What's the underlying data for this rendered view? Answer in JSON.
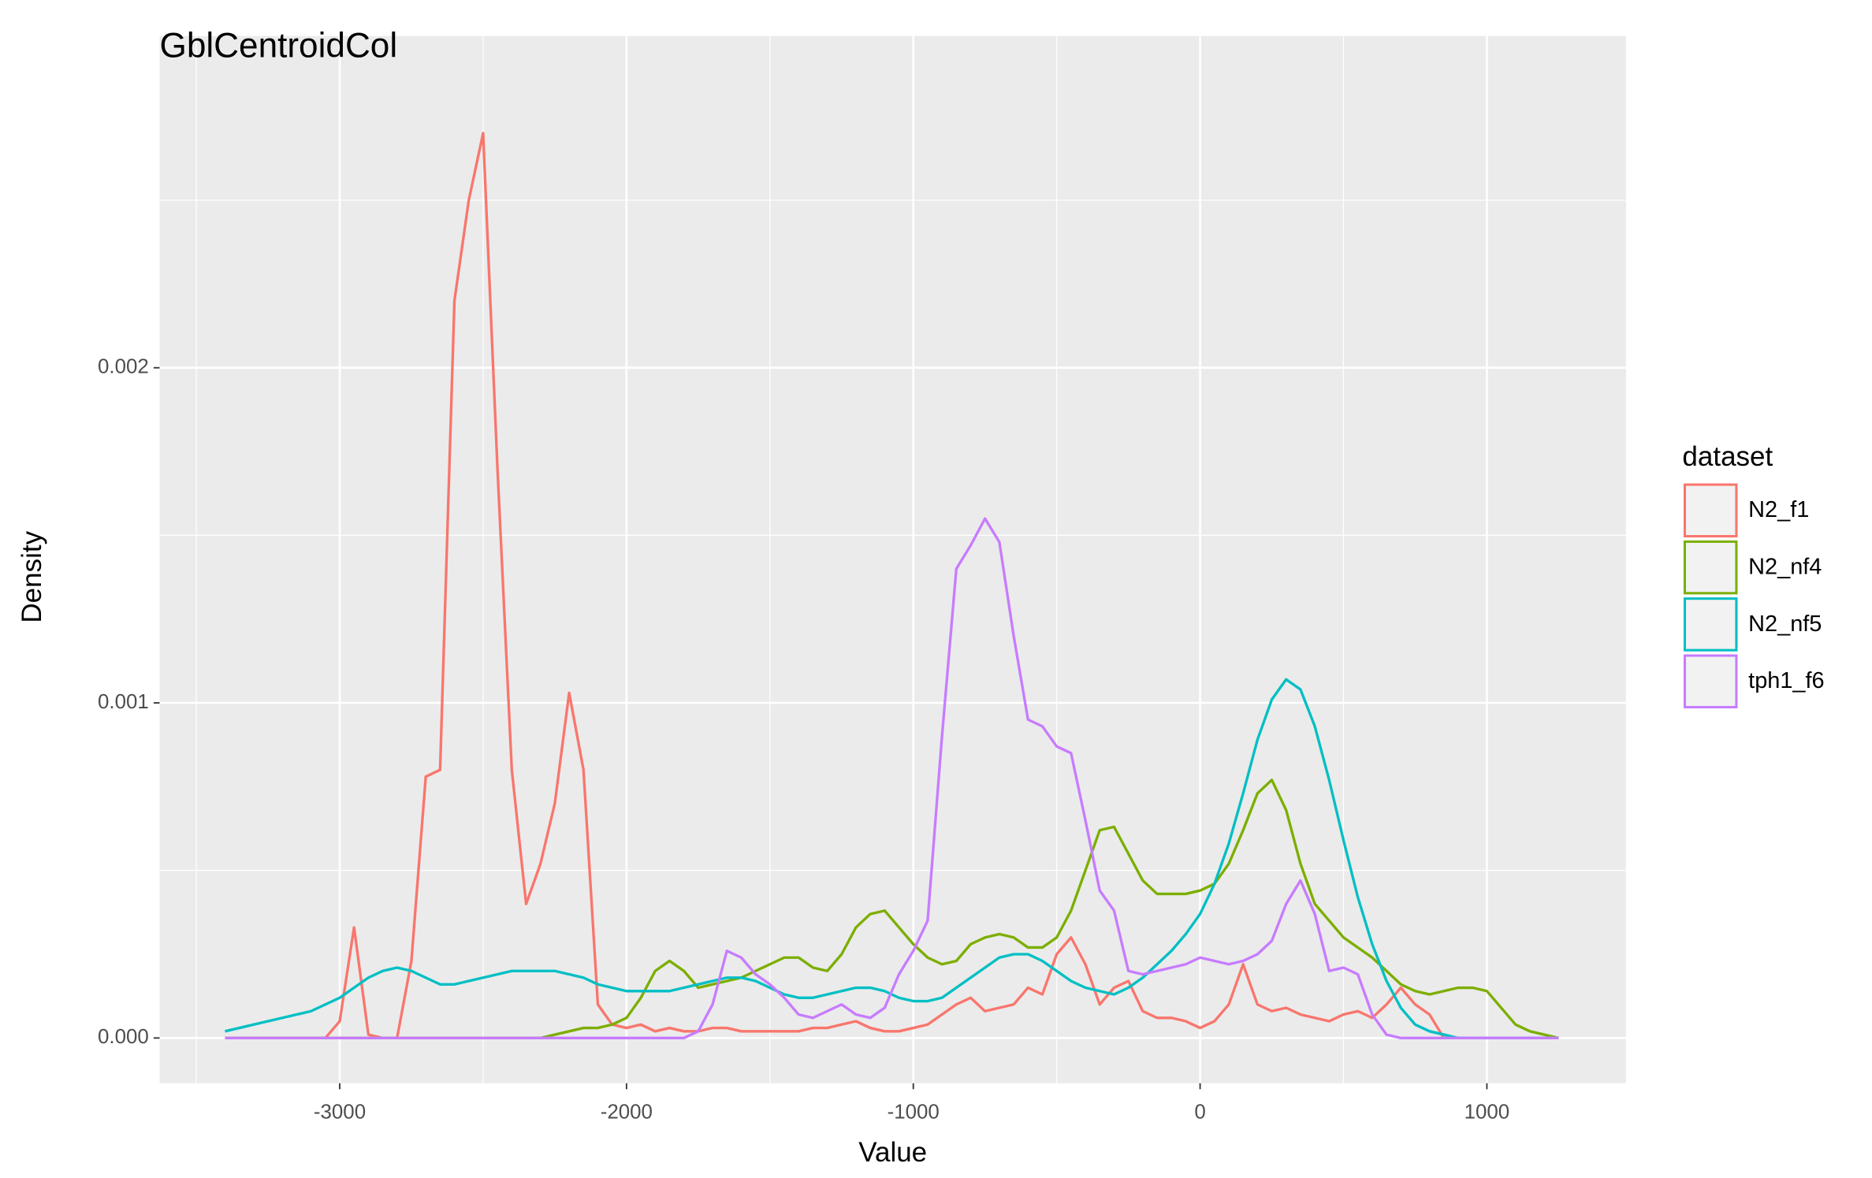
{
  "chart_data": {
    "type": "line",
    "title": "GblCentroidCol",
    "x_label": "Value",
    "y_label": "Density",
    "legend_title": "dataset",
    "legend_position": "right",
    "grid": true,
    "xlim": [
      -3628,
      1485
    ],
    "ylim": [
      -0.000135,
      0.00299
    ],
    "xticks": [
      -3000,
      -2000,
      -1000,
      0,
      1000
    ],
    "yticks": [
      {
        "value": 0,
        "label": "0.000"
      },
      {
        "value": 0.001,
        "label": "0.001"
      },
      {
        "value": 0.002,
        "label": "0.002"
      }
    ],
    "x": [
      -3400,
      -3350,
      -3300,
      -3250,
      -3200,
      -3150,
      -3100,
      -3050,
      -3000,
      -2950,
      -2900,
      -2850,
      -2800,
      -2750,
      -2700,
      -2650,
      -2600,
      -2550,
      -2500,
      -2450,
      -2400,
      -2350,
      -2300,
      -2250,
      -2200,
      -2150,
      -2100,
      -2050,
      -2000,
      -1950,
      -1900,
      -1850,
      -1800,
      -1750,
      -1700,
      -1650,
      -1600,
      -1550,
      -1500,
      -1450,
      -1400,
      -1350,
      -1300,
      -1250,
      -1200,
      -1150,
      -1100,
      -1050,
      -1000,
      -950,
      -900,
      -850,
      -800,
      -750,
      -700,
      -650,
      -600,
      -550,
      -500,
      -450,
      -400,
      -350,
      -300,
      -250,
      -200,
      -150,
      -100,
      -50,
      0,
      50,
      100,
      150,
      200,
      250,
      300,
      350,
      400,
      450,
      500,
      550,
      600,
      650,
      700,
      750,
      800,
      850,
      900,
      950,
      1000,
      1050,
      1100,
      1150,
      1200,
      1250
    ],
    "series": [
      {
        "name": "N2_f1",
        "color": "#F8766D",
        "values": [
          0,
          0,
          0,
          0,
          0,
          0,
          0,
          0,
          5e-05,
          0.00033,
          1e-05,
          0,
          0,
          0.00023,
          0.00078,
          0.0008,
          0.0022,
          0.0025,
          0.0027,
          0.0017,
          0.0008,
          0.0004,
          0.00052,
          0.0007,
          0.00103,
          0.0008,
          0.0001,
          4e-05,
          3e-05,
          4e-05,
          2e-05,
          3e-05,
          2e-05,
          2e-05,
          3e-05,
          3e-05,
          2e-05,
          2e-05,
          2e-05,
          2e-05,
          2e-05,
          3e-05,
          3e-05,
          4e-05,
          5e-05,
          3e-05,
          2e-05,
          2e-05,
          3e-05,
          4e-05,
          7e-05,
          0.0001,
          0.00012,
          8e-05,
          9e-05,
          0.0001,
          0.00015,
          0.00013,
          0.00025,
          0.0003,
          0.00022,
          0.0001,
          0.00015,
          0.00017,
          8e-05,
          6e-05,
          6e-05,
          5e-05,
          3e-05,
          5e-05,
          0.0001,
          0.00022,
          0.0001,
          8e-05,
          9e-05,
          7e-05,
          6e-05,
          5e-05,
          7e-05,
          8e-05,
          6e-05,
          0.0001,
          0.00015,
          0.0001,
          7e-05,
          0,
          0,
          0,
          0,
          0,
          0,
          0,
          0,
          0
        ]
      },
      {
        "name": "N2_nf4",
        "color": "#7CAE00",
        "values": [
          0,
          0,
          0,
          0,
          0,
          0,
          0,
          0,
          0,
          0,
          0,
          0,
          0,
          0,
          0,
          0,
          0,
          0,
          0,
          0,
          0,
          0,
          0,
          1e-05,
          2e-05,
          3e-05,
          3e-05,
          4e-05,
          6e-05,
          0.00012,
          0.0002,
          0.00023,
          0.0002,
          0.00015,
          0.00016,
          0.00017,
          0.00018,
          0.0002,
          0.00022,
          0.00024,
          0.00024,
          0.00021,
          0.0002,
          0.00025,
          0.00033,
          0.00037,
          0.00038,
          0.00033,
          0.00028,
          0.00024,
          0.00022,
          0.00023,
          0.00028,
          0.0003,
          0.00031,
          0.0003,
          0.00027,
          0.00027,
          0.0003,
          0.00038,
          0.0005,
          0.00062,
          0.00063,
          0.00055,
          0.00047,
          0.00043,
          0.00043,
          0.00043,
          0.00044,
          0.00046,
          0.00052,
          0.00062,
          0.00073,
          0.00077,
          0.00068,
          0.00052,
          0.0004,
          0.00035,
          0.0003,
          0.00027,
          0.00024,
          0.0002,
          0.00016,
          0.00014,
          0.00013,
          0.00014,
          0.00015,
          0.00015,
          0.00014,
          9e-05,
          4e-05,
          2e-05,
          1e-05,
          0
        ]
      },
      {
        "name": "N2_nf5",
        "color": "#00BFC4",
        "values": [
          2e-05,
          3e-05,
          4e-05,
          5e-05,
          6e-05,
          7e-05,
          8e-05,
          0.0001,
          0.00012,
          0.00015,
          0.00018,
          0.0002,
          0.00021,
          0.0002,
          0.00018,
          0.00016,
          0.00016,
          0.00017,
          0.00018,
          0.00019,
          0.0002,
          0.0002,
          0.0002,
          0.0002,
          0.00019,
          0.00018,
          0.00016,
          0.00015,
          0.00014,
          0.00014,
          0.00014,
          0.00014,
          0.00015,
          0.00016,
          0.00017,
          0.00018,
          0.00018,
          0.00017,
          0.00015,
          0.00013,
          0.00012,
          0.00012,
          0.00013,
          0.00014,
          0.00015,
          0.00015,
          0.00014,
          0.00012,
          0.00011,
          0.00011,
          0.00012,
          0.00015,
          0.00018,
          0.00021,
          0.00024,
          0.00025,
          0.00025,
          0.00023,
          0.0002,
          0.00017,
          0.00015,
          0.00014,
          0.00013,
          0.00015,
          0.00018,
          0.00022,
          0.00026,
          0.00031,
          0.00037,
          0.00046,
          0.00058,
          0.00073,
          0.00089,
          0.00101,
          0.00107,
          0.00104,
          0.00093,
          0.00077,
          0.00059,
          0.00042,
          0.00028,
          0.00017,
          9e-05,
          4e-05,
          2e-05,
          1e-05,
          0,
          0,
          0,
          0,
          0,
          0,
          0,
          0
        ]
      },
      {
        "name": "tph1_f6",
        "color": "#C77CFF",
        "values": [
          0,
          0,
          0,
          0,
          0,
          0,
          0,
          0,
          0,
          0,
          0,
          0,
          0,
          0,
          0,
          0,
          0,
          0,
          0,
          0,
          0,
          0,
          0,
          0,
          0,
          0,
          0,
          0,
          0,
          0,
          0,
          0,
          0,
          2e-05,
          0.0001,
          0.00026,
          0.00024,
          0.00019,
          0.00016,
          0.00012,
          7e-05,
          6e-05,
          8e-05,
          0.0001,
          7e-05,
          6e-05,
          9e-05,
          0.00019,
          0.00026,
          0.00035,
          0.0009,
          0.0014,
          0.00147,
          0.00155,
          0.00148,
          0.0012,
          0.00095,
          0.00093,
          0.00087,
          0.00085,
          0.00065,
          0.00044,
          0.00038,
          0.0002,
          0.00019,
          0.0002,
          0.00021,
          0.00022,
          0.00024,
          0.00023,
          0.00022,
          0.00023,
          0.00025,
          0.00029,
          0.0004,
          0.00047,
          0.00037,
          0.0002,
          0.00021,
          0.00019,
          7e-05,
          1e-05,
          0,
          0,
          0,
          0,
          0,
          0,
          0,
          0,
          0,
          0,
          0,
          0
        ]
      }
    ]
  }
}
